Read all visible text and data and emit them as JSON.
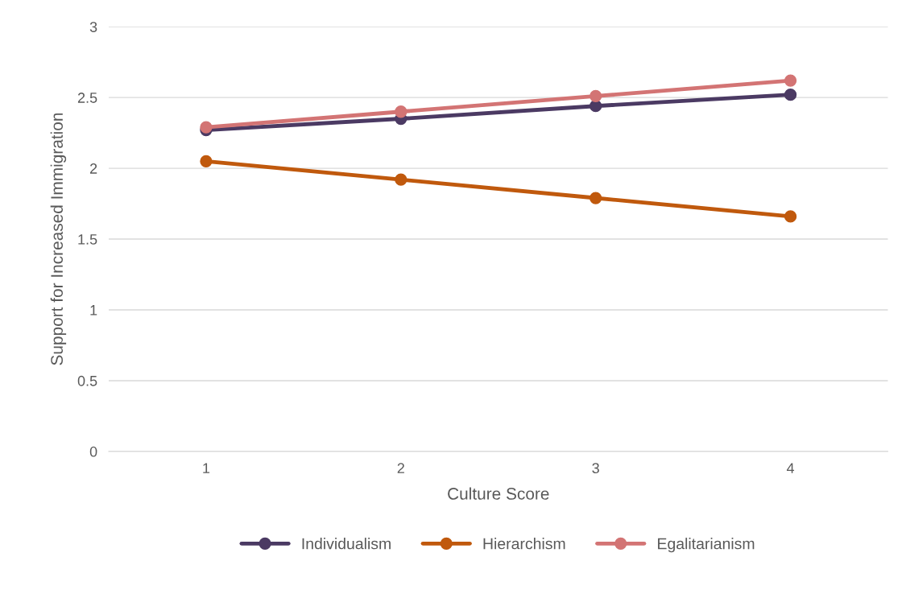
{
  "chart_data": {
    "type": "line",
    "xlabel": "Culture Score",
    "ylabel": "Support for Increased Immigration",
    "categories": [
      "1",
      "2",
      "3",
      "4"
    ],
    "series": [
      {
        "name": "Individualism",
        "color": "#4b3a63",
        "values": [
          2.27,
          2.35,
          2.44,
          2.52
        ]
      },
      {
        "name": "Hierarchism",
        "color": "#c0590d",
        "values": [
          2.05,
          1.92,
          1.79,
          1.66
        ]
      },
      {
        "name": "Egalitarianism",
        "color": "#d37474",
        "values": [
          2.29,
          2.4,
          2.51,
          2.62
        ]
      }
    ],
    "ylim": [
      0,
      3
    ],
    "yticks": [
      0,
      0.5,
      1,
      1.5,
      2,
      2.5,
      3
    ],
    "grid": "y",
    "legend": "bottom",
    "marker": "circle",
    "line_style": "solid"
  }
}
